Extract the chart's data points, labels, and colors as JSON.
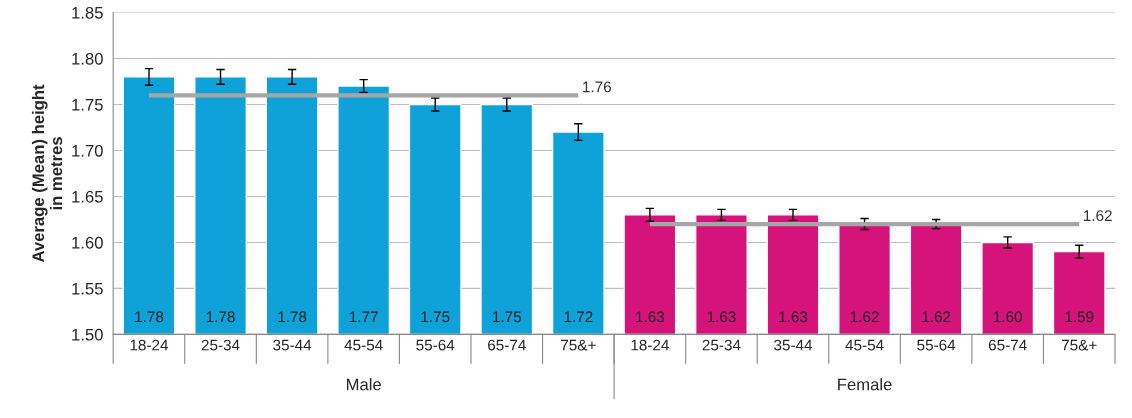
{
  "chart_data": {
    "type": "bar",
    "ylabel": "Average (Mean) height\nin metres",
    "categories": [
      "18-24",
      "25-34",
      "35-44",
      "45-54",
      "55-64",
      "65-74",
      "75&+",
      "18-24",
      "25-34",
      "35-44",
      "45-54",
      "55-64",
      "65-74",
      "75&+"
    ],
    "ylim": [
      1.5,
      1.85
    ],
    "yticks": [
      {
        "value": 1.5,
        "label": "1.50"
      },
      {
        "value": 1.55,
        "label": "1.55"
      },
      {
        "value": 1.6,
        "label": "1.60"
      },
      {
        "value": 1.65,
        "label": "1.65"
      },
      {
        "value": 1.7,
        "label": "1.70"
      },
      {
        "value": 1.75,
        "label": "1.75"
      },
      {
        "value": 1.8,
        "label": "1.80"
      },
      {
        "value": 1.85,
        "label": "1.85"
      }
    ],
    "grid": "y",
    "series": [
      {
        "colors": [
          "#0ea2d9",
          "#0ea2d9",
          "#0ea2d9",
          "#0ea2d9",
          "#0ea2d9",
          "#0ea2d9",
          "#0ea2d9",
          "#d5137a",
          "#d5137a",
          "#d5137a",
          "#d5137a",
          "#d5137a",
          "#d5137a",
          "#d5137a"
        ],
        "values": [
          1.78,
          1.78,
          1.78,
          1.77,
          1.75,
          1.75,
          1.72,
          1.63,
          1.63,
          1.63,
          1.62,
          1.62,
          1.6,
          1.59
        ],
        "errors": [
          0.009,
          0.008,
          0.008,
          0.007,
          0.007,
          0.007,
          0.009,
          0.007,
          0.006,
          0.006,
          0.006,
          0.005,
          0.006,
          0.007
        ],
        "value_labels": [
          "1.78",
          "1.78",
          "1.78",
          "1.77",
          "1.75",
          "1.75",
          "1.72",
          "1.63",
          "1.63",
          "1.63",
          "1.62",
          "1.62",
          "1.60",
          "1.59"
        ]
      },
      {
        "type": "line",
        "color": "#a6a6a6",
        "values": [
          1.76,
          1.76,
          1.76,
          1.76,
          1.76,
          1.76,
          1.76,
          null,
          null,
          null,
          null,
          null,
          null,
          null
        ],
        "value_labels": [
          null,
          null,
          null,
          null,
          null,
          null,
          "1.76",
          null,
          null,
          null,
          null,
          null,
          null,
          null
        ]
      },
      {
        "type": "line",
        "color": "#a6a6a6",
        "values": [
          null,
          null,
          null,
          null,
          null,
          null,
          null,
          1.62,
          1.62,
          1.62,
          1.62,
          1.62,
          1.62,
          1.62
        ],
        "value_labels": [
          null,
          null,
          null,
          null,
          null,
          null,
          null,
          null,
          null,
          null,
          null,
          null,
          null,
          "1.62"
        ]
      }
    ],
    "annotations": [
      "Male",
      "Female"
    ]
  }
}
